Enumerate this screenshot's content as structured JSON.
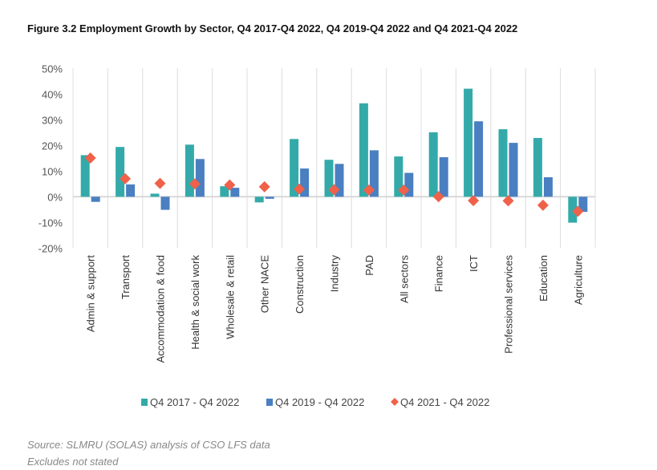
{
  "chart_data": {
    "type": "bar",
    "title": "Figure 3.2 Employment Growth by Sector, Q4 2017-Q4 2022, Q4 2019-Q4 2022 and Q4 2021-Q4 2022",
    "categories": [
      "Admin & support",
      "Transport",
      "Accommodation & food",
      "Health & social work",
      "Wholesale & retail",
      "Other NACE",
      "Construction",
      "Industry",
      "PAD",
      "All sectors",
      "Finance",
      "ICT",
      "Professional services",
      "Education",
      "Agriculture"
    ],
    "series": [
      {
        "name": "Q4 2017 - Q4 2022",
        "kind": "bar",
        "color": "#33AAA9",
        "values": [
          16.2,
          19.4,
          1.2,
          20.3,
          4.1,
          -2.2,
          22.5,
          14.4,
          36.4,
          15.7,
          25.1,
          42.1,
          26.3,
          22.9,
          -10.1
        ]
      },
      {
        "name": "Q4 2019 - Q4 2022",
        "kind": "bar",
        "color": "#4A7FC1",
        "values": [
          -2.0,
          4.8,
          -5.1,
          14.7,
          3.5,
          -0.8,
          11.0,
          12.8,
          18.1,
          9.3,
          15.4,
          29.4,
          21.0,
          7.6,
          -5.9
        ]
      },
      {
        "name": "Q4 2021 - Q4 2022",
        "kind": "marker",
        "color": "#F0614A",
        "values": [
          15.1,
          7.0,
          5.2,
          5.0,
          4.6,
          3.9,
          3.0,
          2.7,
          2.6,
          2.6,
          0.0,
          -1.5,
          -1.6,
          -3.3,
          -5.7
        ]
      }
    ],
    "yticks": [
      "-20%",
      "-10%",
      "0%",
      "10%",
      "20%",
      "30%",
      "40%",
      "50%"
    ],
    "ylim": [
      -20,
      50
    ],
    "grid": "vertical category separators",
    "legend": "bottom",
    "xlabel": "",
    "ylabel": ""
  },
  "notes": {
    "source": "Source: SLMRU (SOLAS) analysis of CSO LFS data",
    "excludes": "Excludes not stated"
  }
}
